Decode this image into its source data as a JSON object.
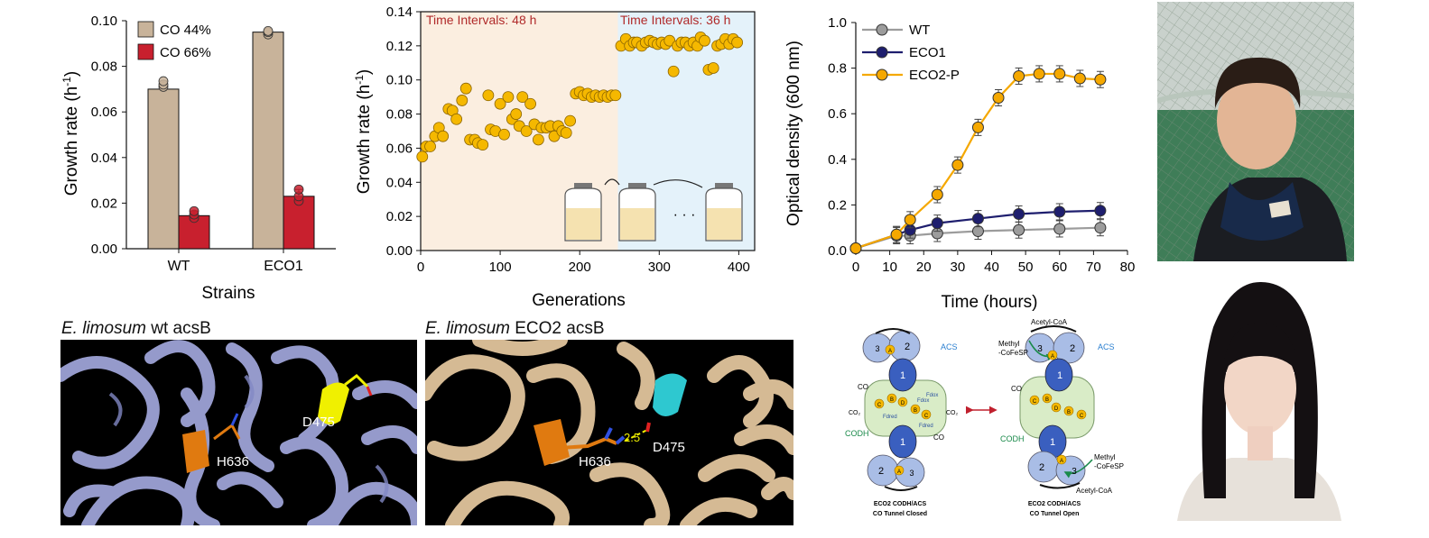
{
  "colors": {
    "co44": "#c8b39a",
    "co66": "#c8202e",
    "gold": "#f5b800",
    "wt": "#9c9c9c",
    "eco1": "#1e1e6e",
    "eco2p": "#f5a800",
    "interval48": "#fbeee0",
    "interval36": "#e4f2fa",
    "intervalText": "#b02a2a",
    "wtStructBg": "#000000",
    "wtRibbon": "#9ea3d6",
    "eco2Ribbon": "#e1c49c",
    "highlightOrange": "#e07a10",
    "highlightYellow": "#f0f000",
    "highlightCyan": "#2ec8d0"
  },
  "chart_data": [
    {
      "type": "bar",
      "categories": [
        "WT",
        "ECO1"
      ],
      "series": [
        {
          "name": "CO 44%",
          "values": [
            0.07,
            0.095
          ]
        },
        {
          "name": "CO 66%",
          "values": [
            0.0145,
            0.023
          ]
        }
      ],
      "points": [
        [
          [
            0.071,
            0.072,
            0.0735
          ],
          [
            0.0135,
            0.015,
            0.0165
          ]
        ],
        [
          [
            0.094,
            0.095,
            0.0955
          ],
          [
            0.021,
            0.023,
            0.026
          ]
        ]
      ],
      "xlabel": "Strains",
      "ylabel_main": "Growth rate (h",
      "ylabel_sup": "-1",
      "ylabel_end": ")",
      "ylim": [
        0,
        0.1
      ],
      "yticks": [
        "0.00",
        "0.02",
        "0.04",
        "0.06",
        "0.08",
        "0.10"
      ],
      "legend": "top-left"
    },
    {
      "type": "scatter",
      "x": [
        2,
        7,
        12,
        18,
        23,
        28,
        35,
        40,
        45,
        52,
        57,
        62,
        68,
        72,
        78,
        85,
        88,
        94,
        100,
        105,
        110,
        115,
        120,
        124,
        128,
        133,
        138,
        143,
        148,
        152,
        158,
        163,
        168,
        173,
        178,
        183,
        188,
        195,
        200,
        205,
        210,
        215,
        220,
        225,
        230,
        235,
        240,
        245,
        252,
        258,
        263,
        268,
        272,
        278,
        283,
        288,
        293,
        298,
        303,
        308,
        313,
        318,
        323,
        328,
        333,
        338,
        343,
        348,
        352,
        357,
        362,
        368,
        373,
        378,
        383,
        388,
        393,
        398
      ],
      "y": [
        0.055,
        0.061,
        0.061,
        0.067,
        0.072,
        0.067,
        0.083,
        0.082,
        0.077,
        0.088,
        0.095,
        0.065,
        0.065,
        0.063,
        0.062,
        0.091,
        0.071,
        0.07,
        0.086,
        0.068,
        0.09,
        0.077,
        0.08,
        0.073,
        0.09,
        0.07,
        0.086,
        0.074,
        0.065,
        0.072,
        0.072,
        0.073,
        0.067,
        0.073,
        0.07,
        0.069,
        0.076,
        0.092,
        0.093,
        0.091,
        0.092,
        0.09,
        0.091,
        0.09,
        0.091,
        0.09,
        0.091,
        0.091,
        0.12,
        0.124,
        0.12,
        0.122,
        0.122,
        0.12,
        0.122,
        0.123,
        0.122,
        0.121,
        0.122,
        0.121,
        0.123,
        0.105,
        0.12,
        0.122,
        0.122,
        0.12,
        0.122,
        0.12,
        0.125,
        0.123,
        0.106,
        0.107,
        0.12,
        0.121,
        0.124,
        0.121,
        0.124,
        0.122
      ],
      "xlabel": "Generations",
      "ylabel_main": "Growth rate (h",
      "ylabel_sup": "-1",
      "ylabel_end": ")",
      "xlim": [
        0,
        420
      ],
      "ylim": [
        0,
        0.14
      ],
      "xticks": [
        "0",
        "100",
        "200",
        "300",
        "400"
      ],
      "yticks": [
        "0.00",
        "0.02",
        "0.04",
        "0.06",
        "0.08",
        "0.10",
        "0.12",
        "0.14"
      ],
      "split_x": 248,
      "annotations": [
        "Time Intervals: 48 h",
        "Time Intervals: 36 h"
      ],
      "ellipsis": "· · ·"
    },
    {
      "type": "line",
      "x": [
        0,
        12,
        16,
        20,
        24,
        30,
        36,
        42,
        48,
        54,
        60,
        66,
        72
      ],
      "series": [
        {
          "name": "WT",
          "x": [
            0,
            12,
            16,
            24,
            36,
            48,
            60,
            72
          ],
          "values": [
            0.01,
            0.065,
            0.065,
            0.075,
            0.085,
            0.09,
            0.095,
            0.1
          ]
        },
        {
          "name": "ECO1",
          "x": [
            0,
            12,
            16,
            24,
            36,
            48,
            60,
            72
          ],
          "values": [
            0.01,
            0.07,
            0.09,
            0.12,
            0.14,
            0.16,
            0.17,
            0.175
          ]
        },
        {
          "name": "ECO2-P",
          "x": [
            0,
            12,
            16,
            24,
            30,
            36,
            42,
            48,
            54,
            60,
            66,
            72
          ],
          "values": [
            0.01,
            0.07,
            0.135,
            0.245,
            0.375,
            0.54,
            0.67,
            0.765,
            0.775,
            0.775,
            0.755,
            0.75
          ]
        }
      ],
      "xlabel": "Time (hours)",
      "ylabel": "Optical density (600 nm)",
      "xlim": [
        0,
        80
      ],
      "ylim": [
        0,
        1.0
      ],
      "xticks": [
        "0",
        "10",
        "20",
        "30",
        "40",
        "50",
        "60",
        "70",
        "80"
      ],
      "yticks": [
        "0.0",
        "0.2",
        "0.4",
        "0.6",
        "0.8",
        "1.0"
      ],
      "legend": "top-left"
    }
  ],
  "structures": {
    "wt": {
      "species": "E. limosum",
      "suffix": " wt acsB",
      "label_a": "H636",
      "label_b": "D475"
    },
    "eco2": {
      "species": "E. limosum",
      "suffix": " ECO2 acsB",
      "label_a": "H636",
      "label_b": "D475",
      "distance": "2.5"
    }
  },
  "diagram": {
    "left": {
      "acs": "ACS",
      "codh": "CODH",
      "co": [
        "CO",
        "CO₂",
        "CO₂",
        "CO"
      ],
      "fd": [
        "Fdox",
        "Fdred",
        "Fdred",
        "Fdox"
      ],
      "caption_1": "ECO2  CODH/ACS",
      "caption_2": "CO Tunnel Closed"
    },
    "right": {
      "acs": "ACS",
      "codh": "CODH",
      "acetyl_top": "Acetyl-CoA",
      "methyl_top": "Methyl",
      "cofesp_top": "-CoFeSP",
      "acetyl_bottom": "Acetyl-CoA",
      "methyl_bottom": "Methyl",
      "cofesp_bottom": "-CoFeSP",
      "co": "CO",
      "caption_1": "ECO2  CODH/ACS",
      "caption_2": "CO Tunnel Open"
    },
    "nums": [
      "1",
      "2",
      "3"
    ],
    "letters": [
      "A",
      "B",
      "C",
      "D"
    ]
  }
}
